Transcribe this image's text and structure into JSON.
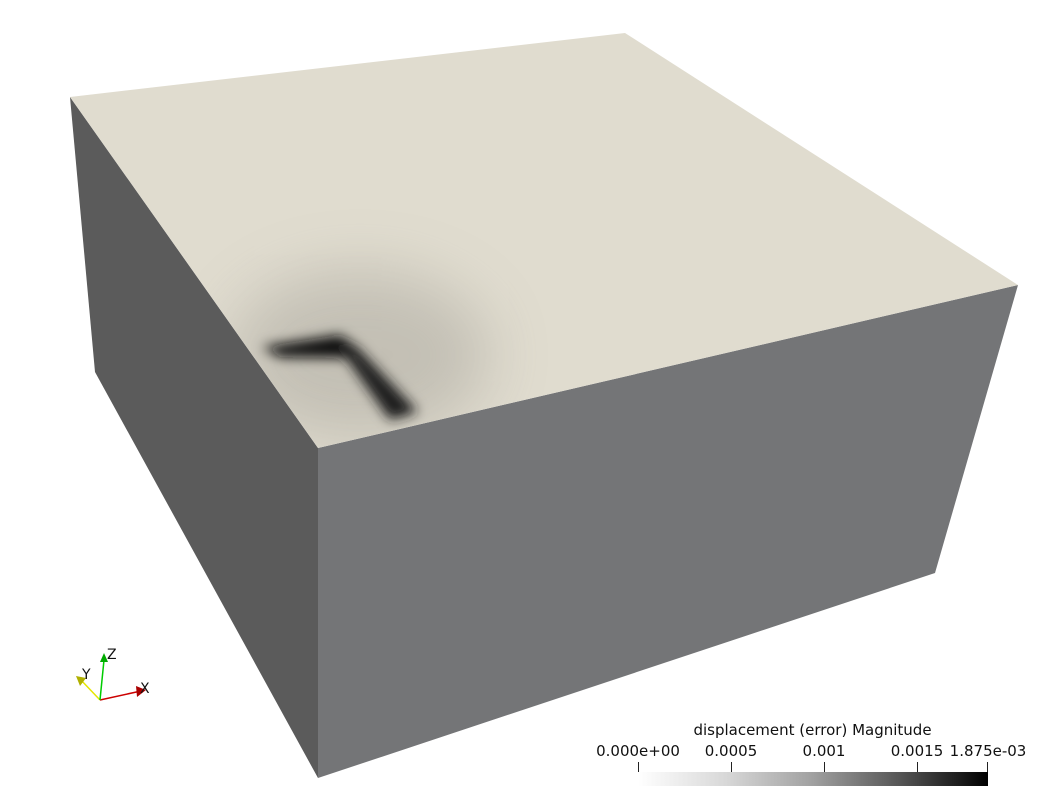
{
  "scene": {
    "background_color": "#ffffff",
    "top_face_color": "#e0dccf",
    "left_face_color": "#5b5b5b",
    "front_face_color": "#747577",
    "hotspot_color": "#000000"
  },
  "orientation_axes": {
    "x_label": "X",
    "y_label": "Y",
    "z_label": "Z",
    "x_color": "#cc0000",
    "y_color": "#e6e600",
    "z_color": "#00cc00"
  },
  "color_legend": {
    "title": "displacement (error) Magnitude",
    "tick_labels": [
      "0.000e+00",
      "0.0005",
      "0.001",
      "0.0015",
      "1.875e-03"
    ],
    "range": [
      0.0,
      0.001875
    ],
    "colormap": [
      "#ffffff",
      "#000000"
    ]
  }
}
